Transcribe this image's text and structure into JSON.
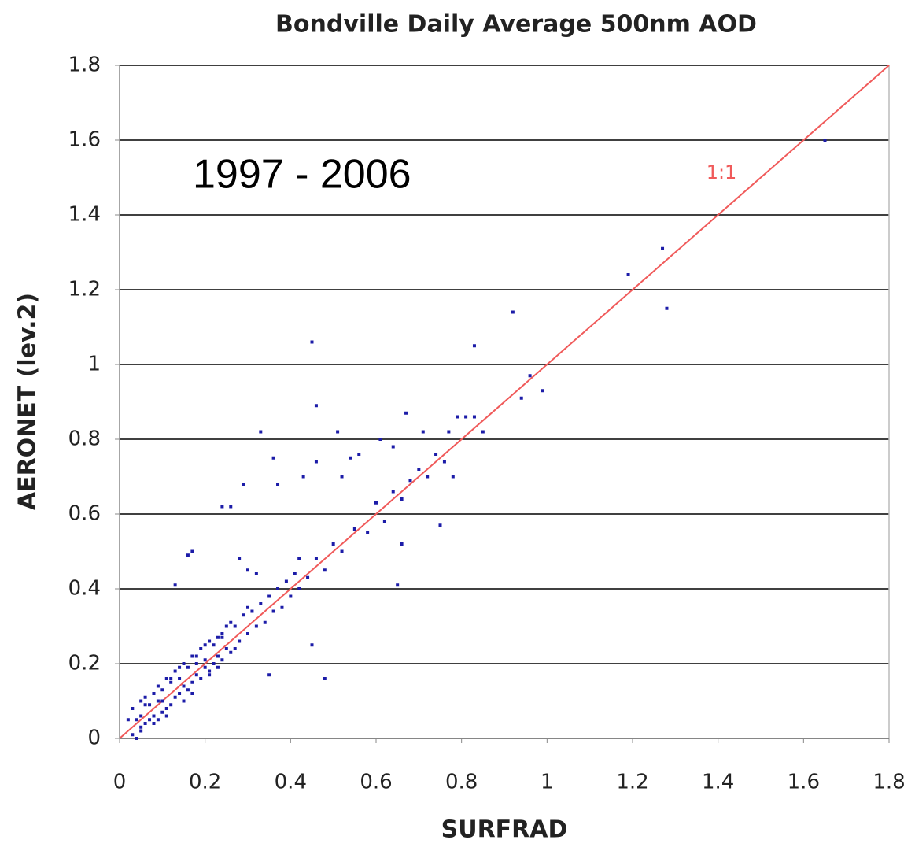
{
  "chart_data": {
    "type": "scatter",
    "title": "Bondville Daily Average 500nm AOD",
    "annotation": "1997 - 2006",
    "xlabel": "SURFRAD",
    "ylabel": "AERONET (lev.2)",
    "reference_line": {
      "label": "1:1",
      "color": "#f05a5a"
    },
    "xlim": [
      0,
      1.8
    ],
    "ylim": [
      0,
      1.8
    ],
    "xticks": [
      0,
      0.2,
      0.4,
      0.6,
      0.8,
      1,
      1.2,
      1.4,
      1.6,
      1.8
    ],
    "yticks": [
      0,
      0.2,
      0.4,
      0.6,
      0.8,
      1,
      1.2,
      1.4,
      1.6,
      1.8
    ],
    "grid": true,
    "series": [
      {
        "name": "AOD",
        "color": "#1c1ca8",
        "x": [
          1.65,
          1.27,
          1.19,
          1.28,
          0.92,
          0.45,
          0.83,
          0.96,
          0.99,
          0.94,
          0.46,
          0.67,
          0.33,
          0.51,
          0.81,
          0.79,
          0.83,
          0.85,
          0.77,
          0.61,
          0.71,
          0.36,
          0.46,
          0.54,
          0.56,
          0.64,
          0.29,
          0.37,
          0.43,
          0.52,
          0.26,
          0.24,
          0.65,
          0.75,
          0.78,
          0.48,
          0.35,
          0.17,
          0.16,
          0.13,
          0.45,
          0.66,
          0.42,
          0.3,
          0.28,
          0.32,
          0.02,
          0.03,
          0.03,
          0.04,
          0.04,
          0.05,
          0.05,
          0.05,
          0.06,
          0.06,
          0.07,
          0.07,
          0.08,
          0.08,
          0.08,
          0.09,
          0.09,
          0.1,
          0.1,
          0.1,
          0.11,
          0.11,
          0.12,
          0.12,
          0.13,
          0.13,
          0.14,
          0.14,
          0.15,
          0.15,
          0.16,
          0.16,
          0.17,
          0.17,
          0.18,
          0.18,
          0.19,
          0.19,
          0.2,
          0.2,
          0.21,
          0.21,
          0.22,
          0.22,
          0.23,
          0.23,
          0.24,
          0.24,
          0.25,
          0.25,
          0.26,
          0.27,
          0.28,
          0.29,
          0.3,
          0.31,
          0.32,
          0.33,
          0.34,
          0.35,
          0.36,
          0.37,
          0.38,
          0.39,
          0.4,
          0.41,
          0.42,
          0.44,
          0.46,
          0.48,
          0.5,
          0.52,
          0.55,
          0.58,
          0.6,
          0.62,
          0.64,
          0.66,
          0.68,
          0.7,
          0.72,
          0.74,
          0.76,
          0.06,
          0.09,
          0.12,
          0.15,
          0.18,
          0.21,
          0.24,
          0.27,
          0.3,
          0.05,
          0.08,
          0.11,
          0.14,
          0.17,
          0.2,
          0.23,
          0.26
        ],
        "values": [
          1.6,
          1.31,
          1.24,
          1.15,
          1.14,
          1.06,
          1.05,
          0.97,
          0.93,
          0.91,
          0.89,
          0.87,
          0.82,
          0.82,
          0.86,
          0.86,
          0.86,
          0.82,
          0.82,
          0.8,
          0.82,
          0.75,
          0.74,
          0.75,
          0.76,
          0.78,
          0.68,
          0.68,
          0.7,
          0.7,
          0.62,
          0.62,
          0.41,
          0.57,
          0.7,
          0.16,
          0.17,
          0.5,
          0.49,
          0.41,
          0.25,
          0.52,
          0.48,
          0.45,
          0.48,
          0.44,
          0.05,
          0.01,
          0.08,
          0.0,
          0.05,
          0.1,
          0.02,
          0.06,
          0.04,
          0.11,
          0.09,
          0.05,
          0.12,
          0.06,
          0.04,
          0.1,
          0.14,
          0.07,
          0.13,
          0.1,
          0.08,
          0.16,
          0.15,
          0.09,
          0.18,
          0.11,
          0.16,
          0.12,
          0.2,
          0.14,
          0.13,
          0.19,
          0.22,
          0.15,
          0.2,
          0.17,
          0.24,
          0.16,
          0.21,
          0.19,
          0.26,
          0.18,
          0.2,
          0.25,
          0.22,
          0.27,
          0.21,
          0.28,
          0.24,
          0.3,
          0.23,
          0.3,
          0.26,
          0.33,
          0.28,
          0.34,
          0.3,
          0.36,
          0.31,
          0.38,
          0.34,
          0.4,
          0.35,
          0.42,
          0.38,
          0.44,
          0.4,
          0.43,
          0.48,
          0.45,
          0.52,
          0.5,
          0.56,
          0.55,
          0.63,
          0.58,
          0.66,
          0.64,
          0.69,
          0.72,
          0.7,
          0.76,
          0.74,
          0.09,
          0.05,
          0.16,
          0.1,
          0.22,
          0.17,
          0.27,
          0.24,
          0.35,
          0.03,
          0.12,
          0.06,
          0.19,
          0.12,
          0.25,
          0.19,
          0.31
        ]
      }
    ]
  }
}
